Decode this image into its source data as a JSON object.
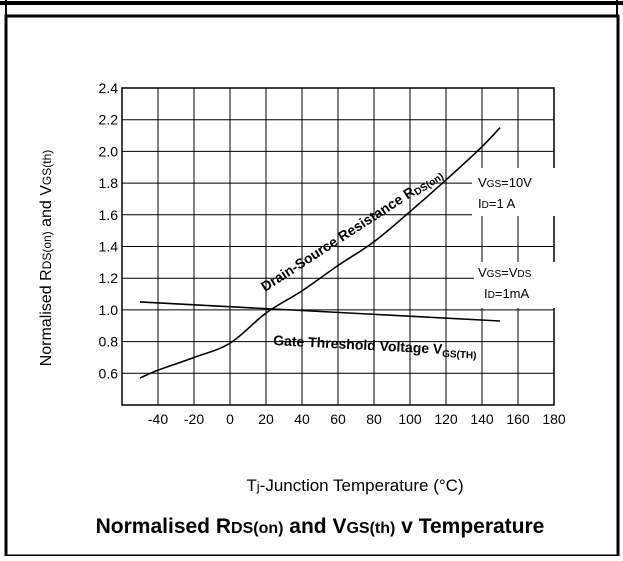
{
  "chart_data": {
    "type": "line",
    "title": "Normalised RDS(on) and VGS(th) v Temperature",
    "xlabel": "Tj-Junction Temperature (°C)",
    "ylabel": "Normalised RDS(on) and VGS(th)",
    "xlim": [
      -60,
      180
    ],
    "ylim": [
      0.4,
      2.4
    ],
    "xticks": [
      -40,
      -20,
      0,
      20,
      40,
      60,
      80,
      100,
      120,
      140,
      160,
      180
    ],
    "yticks": [
      0.6,
      0.8,
      1.0,
      1.2,
      1.4,
      1.6,
      1.8,
      2.0,
      2.2,
      2.4
    ],
    "grid": true,
    "series": [
      {
        "name": "Drain-Source Resistance RDS(on)",
        "x": [
          -50,
          -40,
          -20,
          0,
          20,
          40,
          60,
          80,
          100,
          120,
          140,
          150
        ],
        "y": [
          0.57,
          0.62,
          0.7,
          0.79,
          0.98,
          1.12,
          1.28,
          1.43,
          1.62,
          1.82,
          2.03,
          2.15
        ]
      },
      {
        "name": "Gate Threshold Voltage VGS(TH)",
        "x": [
          -50,
          150
        ],
        "y": [
          1.05,
          0.93
        ]
      }
    ],
    "annotations": [
      {
        "line1": "VGS=10V",
        "line2": "ID=1 A"
      },
      {
        "line1": "VGS=VDS",
        "line2": "ID=1mA"
      }
    ]
  }
}
